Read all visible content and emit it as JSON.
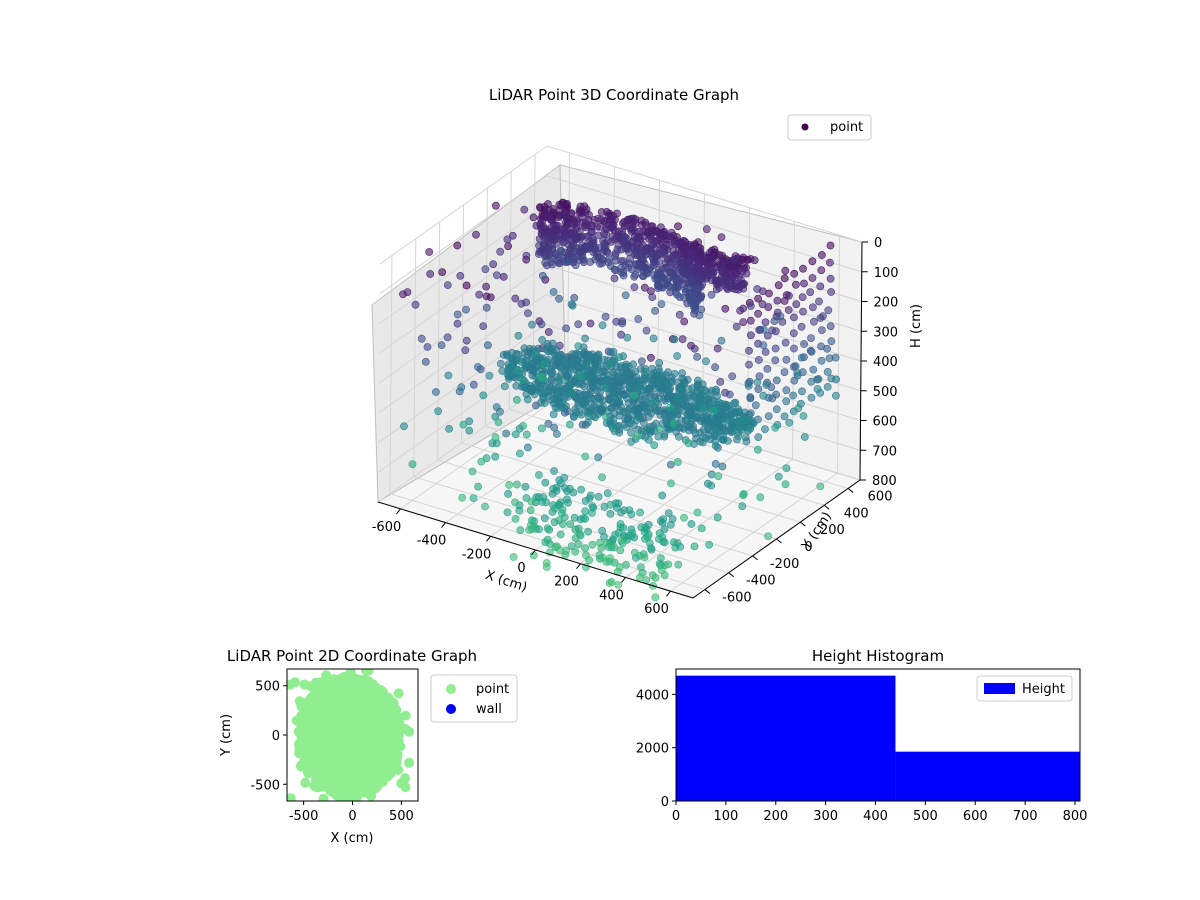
{
  "figure": {
    "background": "#ffffff"
  },
  "chart_data": [
    {
      "type": "scatter",
      "projection": "3d",
      "title": "LiDAR Point 3D Coordinate Graph",
      "xlabel": "X (cm)",
      "ylabel": "Y (cm)",
      "zlabel": "H (cm)",
      "xlim": [
        -700,
        700
      ],
      "ylim": [
        -700,
        700
      ],
      "zlim": [
        800,
        0
      ],
      "xticks": [
        -600,
        -400,
        -200,
        0,
        200,
        400,
        600
      ],
      "yticks": [
        -600,
        -400,
        -200,
        0,
        200,
        400,
        600
      ],
      "zticks": [
        0,
        100,
        200,
        300,
        400,
        500,
        600,
        700,
        800
      ],
      "grid": true,
      "colormap": "viridis",
      "legend": {
        "entries": [
          "point"
        ],
        "placement": "top-right",
        "marker_color": "#440154"
      },
      "series": [
        {
          "name": "point",
          "description_color": "height-mapped viridis"
        }
      ]
    },
    {
      "type": "scatter",
      "title": "LiDAR Point 2D Coordinate Graph",
      "xlabel": "X (cm)",
      "ylabel": "Y (cm)",
      "xlim": [
        -670,
        670
      ],
      "ylim": [
        -670,
        670
      ],
      "xticks": [
        -500,
        0,
        500
      ],
      "yticks": [
        -500,
        0,
        500
      ],
      "legend": {
        "entries": [
          "point",
          "wall"
        ],
        "placement": "outside-right"
      },
      "series": [
        {
          "name": "point",
          "color": "#90ee90"
        },
        {
          "name": "wall",
          "color": "#0000ff"
        }
      ]
    },
    {
      "type": "bar",
      "subtype": "histogram",
      "title": "Height Histogram",
      "xlim": [
        0,
        810
      ],
      "ylim": [
        0,
        4950
      ],
      "xticks": [
        0,
        100,
        200,
        300,
        400,
        500,
        600,
        700,
        800
      ],
      "yticks": [
        0,
        2000,
        4000
      ],
      "bins": [
        {
          "from": 0,
          "to": 440,
          "count": 4700
        },
        {
          "from": 440,
          "to": 810,
          "count": 1850
        }
      ],
      "color": "#0000ff",
      "legend": {
        "entries": [
          "Height"
        ],
        "placement": "top-right"
      }
    }
  ]
}
